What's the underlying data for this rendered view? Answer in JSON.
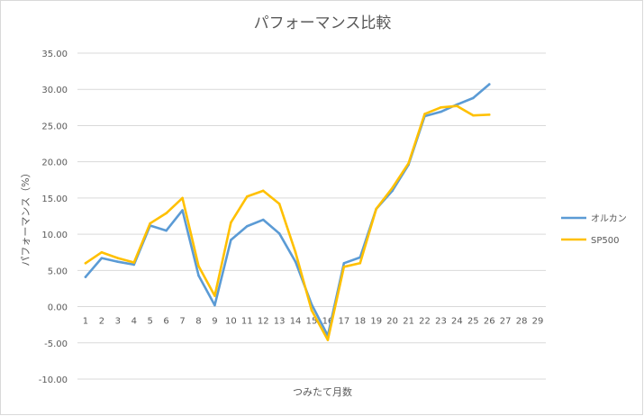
{
  "chart_data": {
    "type": "line",
    "title": "パフォーマンス比較",
    "xlabel": "つみたて月数",
    "ylabel": "パフォーマンス（%）",
    "ylim": [
      -10,
      35
    ],
    "ytick_step": 5,
    "ytick_labels": [
      "35.00",
      "30.00",
      "25.00",
      "20.00",
      "15.00",
      "10.00",
      "5.00",
      "0.00",
      "-5.00",
      "-10.00"
    ],
    "categories": [
      "1",
      "2",
      "3",
      "4",
      "5",
      "6",
      "7",
      "8",
      "9",
      "10",
      "11",
      "12",
      "13",
      "14",
      "15",
      "16",
      "17",
      "18",
      "19",
      "20",
      "21",
      "22",
      "23",
      "24",
      "25",
      "26",
      "27",
      "28",
      "29"
    ],
    "grid": true,
    "legend": "right",
    "series": [
      {
        "name": "オルカン",
        "color": "#5B9BD5",
        "values": [
          4.1,
          6.7,
          6.2,
          5.8,
          11.2,
          10.5,
          13.3,
          4.3,
          0.2,
          9.2,
          11.1,
          12.0,
          10.1,
          6.2,
          0.3,
          -4.0,
          6.0,
          6.8,
          13.5,
          16.0,
          19.6,
          26.3,
          26.9,
          27.9,
          28.8,
          30.7,
          null,
          null,
          null
        ]
      },
      {
        "name": "SP500",
        "color": "#FFC000",
        "values": [
          6.0,
          7.5,
          6.7,
          6.1,
          11.5,
          12.9,
          15.0,
          5.6,
          1.5,
          11.6,
          15.2,
          16.0,
          14.2,
          7.5,
          -0.5,
          -4.6,
          5.5,
          6.0,
          13.5,
          16.4,
          19.8,
          26.6,
          27.5,
          27.7,
          26.4,
          26.5,
          null,
          null,
          null
        ]
      }
    ]
  }
}
